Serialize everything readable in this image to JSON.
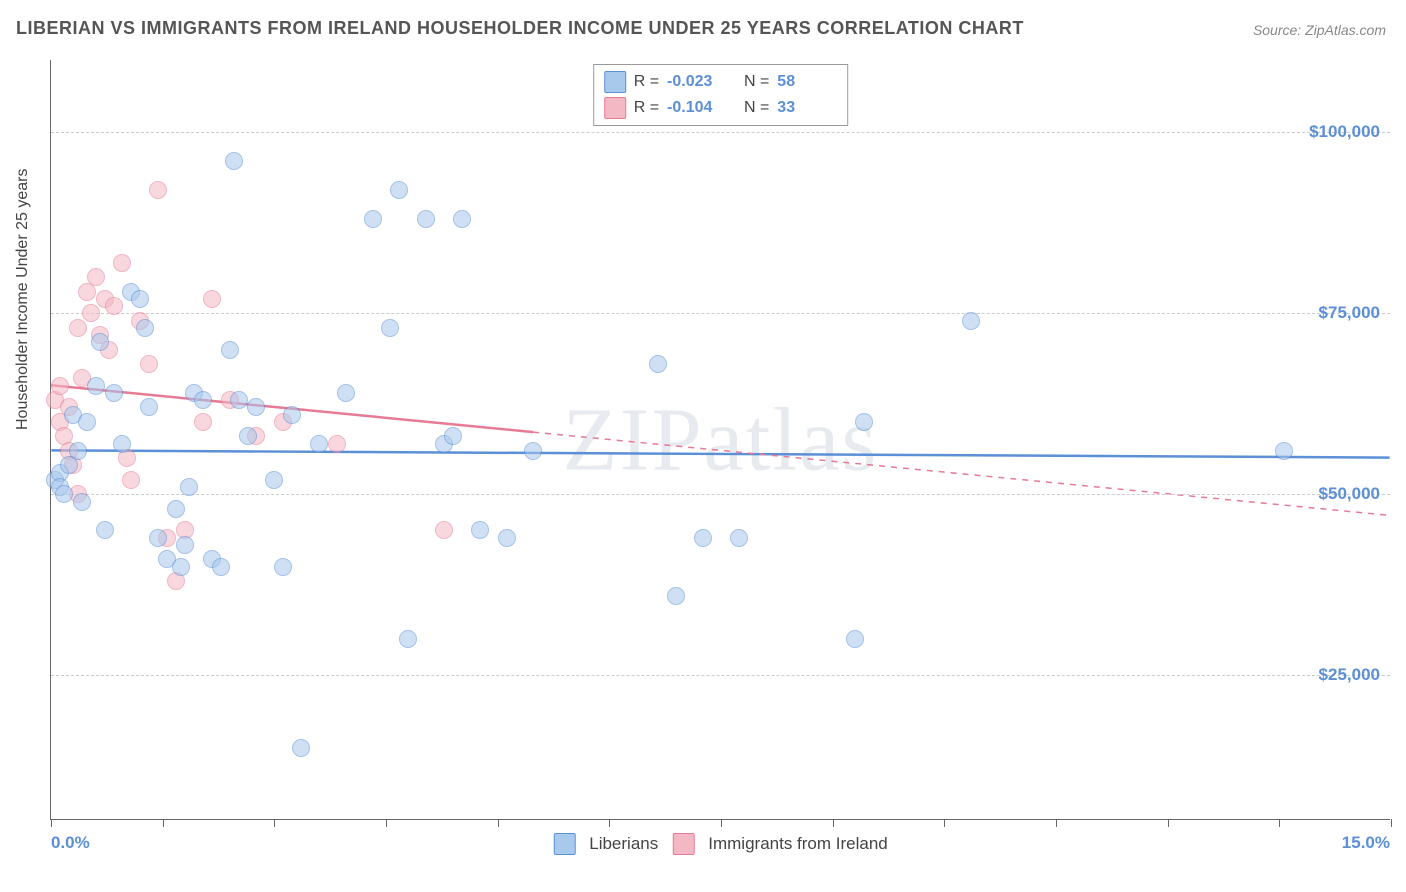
{
  "title": "LIBERIAN VS IMMIGRANTS FROM IRELAND HOUSEHOLDER INCOME UNDER 25 YEARS CORRELATION CHART",
  "source": "Source: ZipAtlas.com",
  "watermark": "ZIPatlas",
  "y_axis_title": "Householder Income Under 25 years",
  "chart": {
    "type": "scatter",
    "background_color": "#ffffff",
    "grid_color": "#cccccc",
    "axis_color": "#666666",
    "xlim": [
      0,
      15
    ],
    "ylim": [
      5000,
      110000
    ],
    "x_ticks": [
      0,
      1.25,
      2.5,
      3.75,
      5,
      6.25,
      7.5,
      8.75,
      10,
      11.25,
      12.5,
      13.75,
      15
    ],
    "x_labels": {
      "0": "0.0%",
      "15": "15.0%"
    },
    "y_gridlines": [
      25000,
      50000,
      75000,
      100000
    ],
    "y_tick_labels": {
      "25000": "$25,000",
      "50000": "$50,000",
      "75000": "$75,000",
      "100000": "$100,000"
    },
    "x_label_color": "#5b8fd6",
    "y_label_color": "#5b8fd6",
    "label_fontsize": 17,
    "title_fontsize": 18,
    "title_color": "#555555",
    "marker_radius": 9,
    "marker_opacity": 0.55,
    "line_width_solid": 2.5,
    "line_width_dash": 1.5
  },
  "series": [
    {
      "name": "Liberians",
      "color_fill": "#a8c8ec",
      "color_stroke": "#5b8fd6",
      "R": "-0.023",
      "N": "58",
      "trend": {
        "y_at_xmin": 56000,
        "y_at_xmax": 55000,
        "solid_until_x": 15
      },
      "points": [
        [
          0.05,
          52000
        ],
        [
          0.1,
          53000
        ],
        [
          0.1,
          51000
        ],
        [
          0.15,
          50000
        ],
        [
          0.2,
          54000
        ],
        [
          0.25,
          61000
        ],
        [
          0.3,
          56000
        ],
        [
          0.35,
          49000
        ],
        [
          0.4,
          60000
        ],
        [
          0.5,
          65000
        ],
        [
          0.55,
          71000
        ],
        [
          0.6,
          45000
        ],
        [
          0.7,
          64000
        ],
        [
          0.8,
          57000
        ],
        [
          0.9,
          78000
        ],
        [
          1.0,
          77000
        ],
        [
          1.05,
          73000
        ],
        [
          1.1,
          62000
        ],
        [
          1.2,
          44000
        ],
        [
          1.3,
          41000
        ],
        [
          1.4,
          48000
        ],
        [
          1.45,
          40000
        ],
        [
          1.5,
          43000
        ],
        [
          1.55,
          51000
        ],
        [
          1.6,
          64000
        ],
        [
          1.7,
          63000
        ],
        [
          1.8,
          41000
        ],
        [
          1.9,
          40000
        ],
        [
          2.0,
          70000
        ],
        [
          2.05,
          96000
        ],
        [
          2.1,
          63000
        ],
        [
          2.2,
          58000
        ],
        [
          2.3,
          62000
        ],
        [
          2.5,
          52000
        ],
        [
          2.6,
          40000
        ],
        [
          2.7,
          61000
        ],
        [
          2.8,
          15000
        ],
        [
          3.0,
          57000
        ],
        [
          3.3,
          64000
        ],
        [
          3.6,
          88000
        ],
        [
          3.8,
          73000
        ],
        [
          3.9,
          92000
        ],
        [
          4.0,
          30000
        ],
        [
          4.2,
          88000
        ],
        [
          4.4,
          57000
        ],
        [
          4.5,
          58000
        ],
        [
          4.6,
          88000
        ],
        [
          4.8,
          45000
        ],
        [
          5.1,
          44000
        ],
        [
          5.4,
          56000
        ],
        [
          6.8,
          68000
        ],
        [
          7.0,
          36000
        ],
        [
          7.3,
          44000
        ],
        [
          7.7,
          44000
        ],
        [
          9.0,
          30000
        ],
        [
          9.1,
          60000
        ],
        [
          10.3,
          74000
        ],
        [
          13.8,
          56000
        ]
      ]
    },
    {
      "name": "Immigrants from Ireland",
      "color_fill": "#f4b8c4",
      "color_stroke": "#e77a94",
      "R": "-0.104",
      "N": "33",
      "trend": {
        "y_at_xmin": 65000,
        "y_at_xmax": 47000,
        "solid_until_x": 5.4
      },
      "points": [
        [
          0.05,
          63000
        ],
        [
          0.1,
          65000
        ],
        [
          0.1,
          60000
        ],
        [
          0.15,
          58000
        ],
        [
          0.2,
          56000
        ],
        [
          0.2,
          62000
        ],
        [
          0.25,
          54000
        ],
        [
          0.3,
          50000
        ],
        [
          0.3,
          73000
        ],
        [
          0.35,
          66000
        ],
        [
          0.4,
          78000
        ],
        [
          0.45,
          75000
        ],
        [
          0.5,
          80000
        ],
        [
          0.55,
          72000
        ],
        [
          0.6,
          77000
        ],
        [
          0.65,
          70000
        ],
        [
          0.7,
          76000
        ],
        [
          0.8,
          82000
        ],
        [
          0.85,
          55000
        ],
        [
          0.9,
          52000
        ],
        [
          1.0,
          74000
        ],
        [
          1.1,
          68000
        ],
        [
          1.2,
          92000
        ],
        [
          1.3,
          44000
        ],
        [
          1.4,
          38000
        ],
        [
          1.5,
          45000
        ],
        [
          1.7,
          60000
        ],
        [
          1.8,
          77000
        ],
        [
          2.0,
          63000
        ],
        [
          2.3,
          58000
        ],
        [
          2.6,
          60000
        ],
        [
          3.2,
          57000
        ],
        [
          4.4,
          45000
        ]
      ]
    }
  ],
  "legend_bottom": [
    {
      "swatch_fill": "#a8c8ec",
      "swatch_stroke": "#5b8fd6",
      "label": "Liberians"
    },
    {
      "swatch_fill": "#f4b8c4",
      "swatch_stroke": "#e77a94",
      "label": "Immigrants from Ireland"
    }
  ]
}
